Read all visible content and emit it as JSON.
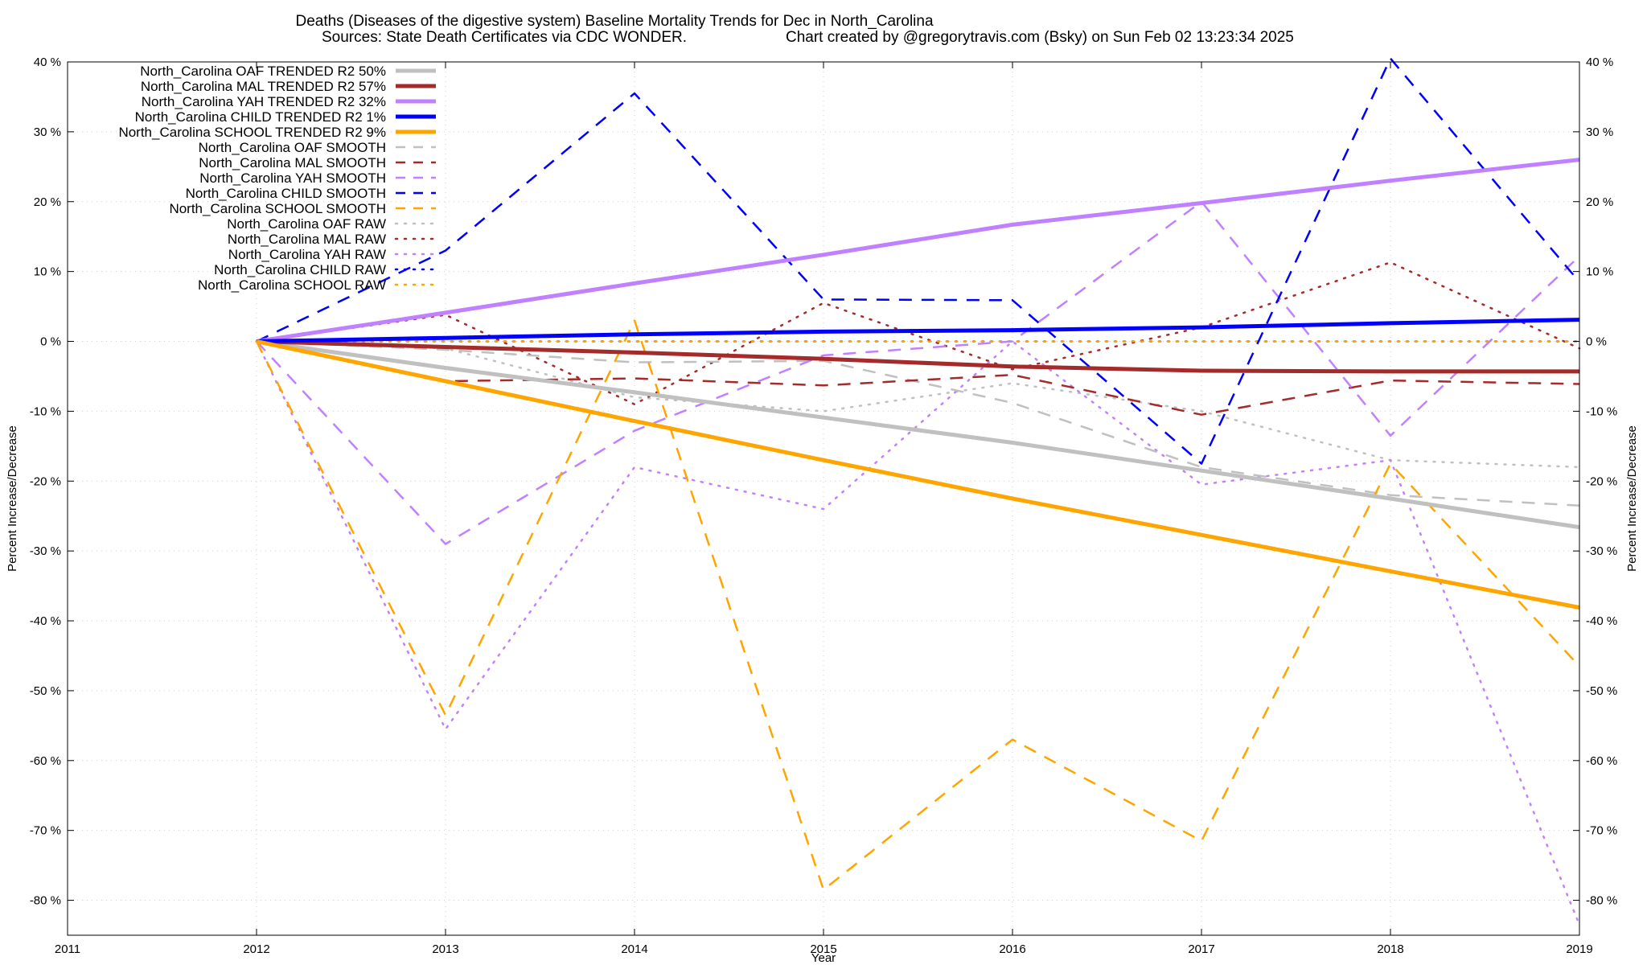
{
  "chart_data": {
    "type": "line",
    "title_line1": "Deaths (Diseases of the digestive system)  Baseline Mortality Trends for Dec in North_Carolina",
    "title_line2_left": "Sources: State Death Certificates via CDC WONDER.",
    "title_line2_right": "Chart created by @gregorytravis.com (Bsky) on Sun Feb 02 13:23:34 2025",
    "xlabel": "Year",
    "ylabel_left": "Percent Increase/Decrease",
    "ylabel_right": "Percent Increase/Decrease",
    "xlim": [
      2011,
      2019
    ],
    "ylim": [
      -85,
      40
    ],
    "x_ticks": [
      2011,
      2012,
      2013,
      2014,
      2015,
      2016,
      2017,
      2018,
      2019
    ],
    "x_tick_labels": [
      "2011",
      "2012",
      "2013",
      "2014",
      "2015",
      "2016",
      "2017",
      "2018",
      "2019"
    ],
    "y_ticks": [
      40,
      30,
      20,
      10,
      0,
      -10,
      -20,
      -30,
      -40,
      -50,
      -60,
      -70,
      -80
    ],
    "y_tick_labels": [
      "40 %",
      "30 %",
      "20 %",
      "10 %",
      "0 %",
      "-10 %",
      "-20 %",
      "-30 %",
      "-40 %",
      "-50 %",
      "-60 %",
      "-70 %",
      "-80 %"
    ],
    "grid": true,
    "legend_position": "top-left",
    "x": [
      2012,
      2013,
      2014,
      2015,
      2016,
      2017,
      2018,
      2019
    ],
    "series": [
      {
        "name": "North_Carolina OAF TRENDED R2  50%",
        "color": "#c0c0c0",
        "style": "trend",
        "values": [
          0,
          -3.8,
          -7.3,
          -10.9,
          -14.5,
          -18.5,
          -22.5,
          -26.6
        ]
      },
      {
        "name": "North_Carolina MAL TRENDED R2  57%",
        "color": "#a52a2a",
        "style": "trend",
        "values": [
          0,
          -0.8,
          -1.6,
          -2.5,
          -3.6,
          -4.2,
          -4.3,
          -4.3
        ]
      },
      {
        "name": "North_Carolina YAH TRENDED R2  32%",
        "color": "#c080ff",
        "style": "trend",
        "values": [
          0,
          4.1,
          8.3,
          12.4,
          16.7,
          19.8,
          23.0,
          26.0
        ]
      },
      {
        "name": "North_Carolina CHILD TRENDED R2   1%",
        "color": "#0000ff",
        "style": "trend",
        "values": [
          0,
          0.5,
          1.0,
          1.4,
          1.6,
          2.0,
          2.6,
          3.1
        ]
      },
      {
        "name": "North_Carolina SCHOOL TRENDED R2   9%",
        "color": "#ffa500",
        "style": "trend",
        "values": [
          0,
          -5.7,
          -11.4,
          -17.0,
          -22.5,
          -27.7,
          -32.9,
          -38.1
        ]
      },
      {
        "name": "North_Carolina OAF SMOOTH",
        "color": "#c0c0c0",
        "style": "smooth",
        "values": [
          0,
          -1.2,
          -3.0,
          -2.8,
          -8.8,
          -18.0,
          -22.0,
          -23.5
        ]
      },
      {
        "name": "North_Carolina MAL SMOOTH",
        "color": "#a52a2a",
        "style": "smooth",
        "values": [
          0,
          -5.7,
          -5.3,
          -6.3,
          -4.8,
          -10.5,
          -5.6,
          -6.1
        ]
      },
      {
        "name": "North_Carolina YAH SMOOTH",
        "color": "#c080ff",
        "style": "smooth",
        "values": [
          0,
          -29.0,
          -12.8,
          -2.0,
          0.0,
          20.0,
          -13.5,
          12.2
        ]
      },
      {
        "name": "North_Carolina CHILD SMOOTH",
        "color": "#0000ff",
        "style": "smooth",
        "values": [
          0,
          13.0,
          35.5,
          6.0,
          5.9,
          -17.5,
          40.5,
          8.5
        ]
      },
      {
        "name": "North_Carolina SCHOOL SMOOTH",
        "color": "#ffa500",
        "style": "smooth",
        "values": [
          0,
          -53.5,
          3.0,
          -78.5,
          -57.0,
          -71.5,
          -17.5,
          -46.5
        ]
      },
      {
        "name": "North_Carolina OAF RAW",
        "color": "#c0c0c0",
        "style": "raw",
        "values": [
          0,
          -1.0,
          -8.0,
          -10.0,
          -6.0,
          -10.0,
          -17.0,
          -18.0
        ]
      },
      {
        "name": "North_Carolina MAL RAW",
        "color": "#a52a2a",
        "style": "raw",
        "values": [
          0,
          3.8,
          -9.0,
          5.5,
          -4.0,
          2.0,
          11.3,
          -1.0
        ]
      },
      {
        "name": "North_Carolina YAH RAW",
        "color": "#c080ff",
        "style": "raw",
        "values": [
          0,
          -55.5,
          -18.0,
          -24.0,
          0.0,
          -20.5,
          -17.0,
          -83.5
        ]
      },
      {
        "name": "North_Carolina CHILD RAW",
        "color": "#0000ff",
        "style": "raw",
        "values": [
          0,
          0,
          0,
          0,
          0,
          0,
          0,
          0
        ]
      },
      {
        "name": "North_Carolina SCHOOL RAW",
        "color": "#ffa500",
        "style": "raw",
        "values": [
          0,
          0,
          0,
          0,
          0,
          0,
          0,
          0
        ]
      }
    ]
  }
}
